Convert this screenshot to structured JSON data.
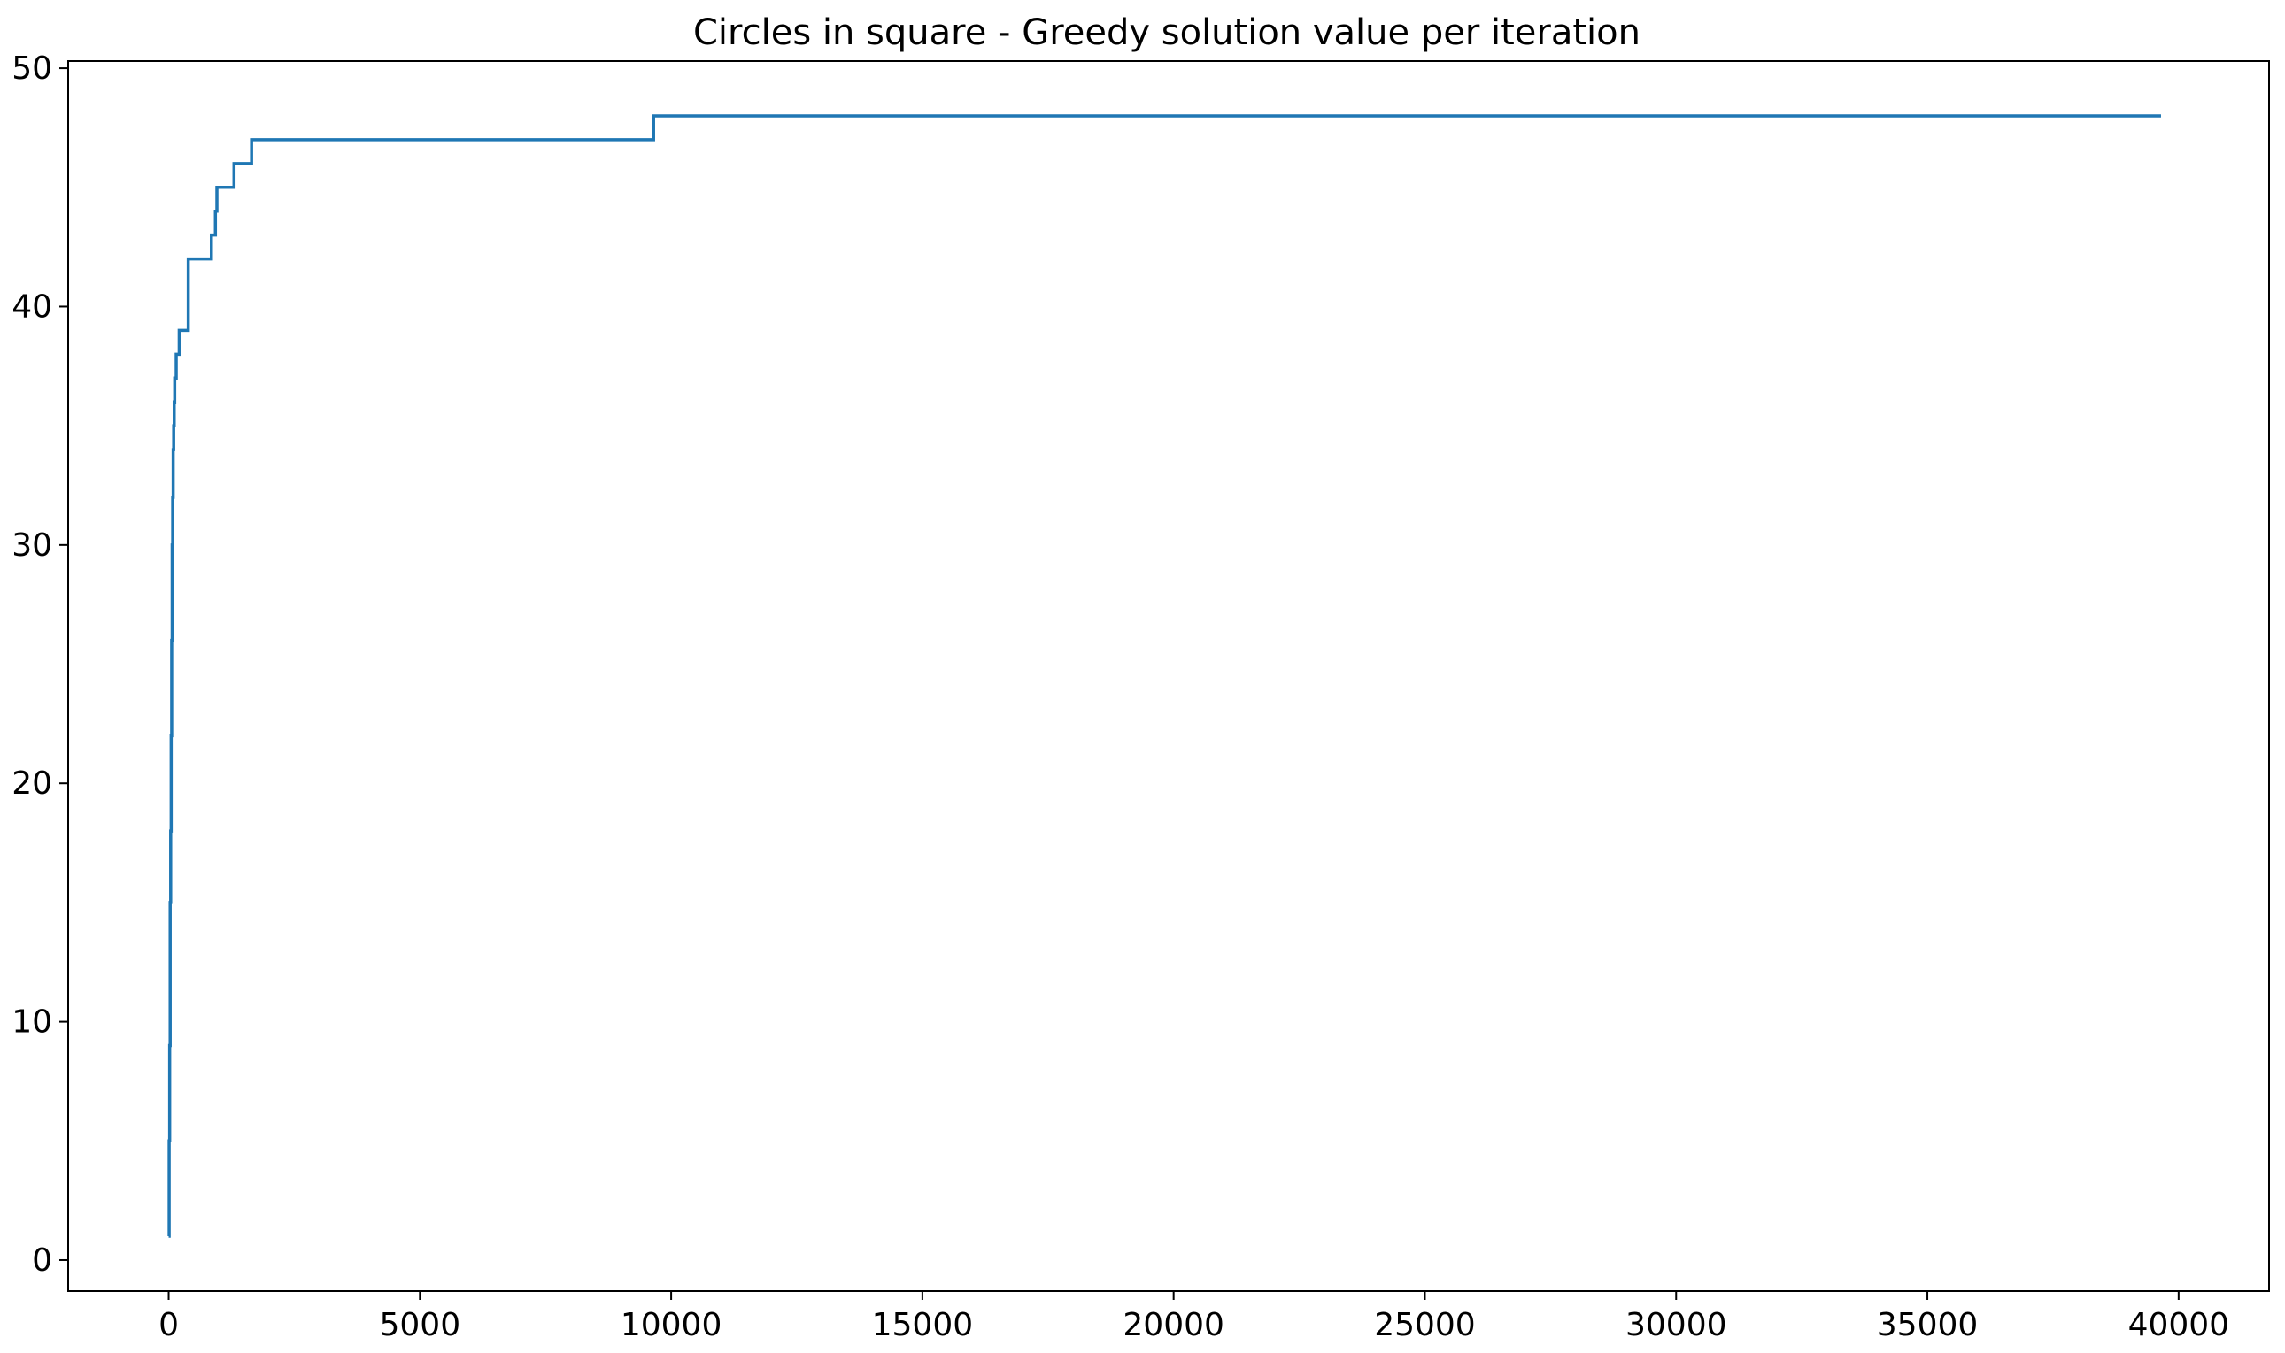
{
  "chart_data": {
    "type": "line",
    "title": "Circles in square - Greedy solution value per iteration",
    "xlabel": "",
    "ylabel": "",
    "xlim": [
      -2000,
      41800
    ],
    "ylim": [
      -1.3,
      50.3
    ],
    "xticks": [
      0,
      5000,
      10000,
      15000,
      20000,
      25000,
      30000,
      35000,
      40000
    ],
    "xtick_labels": [
      "0",
      "5000",
      "10000",
      "15000",
      "20000",
      "25000",
      "30000",
      "35000",
      "40000"
    ],
    "yticks": [
      0,
      10,
      20,
      30,
      40,
      50
    ],
    "ytick_labels": [
      "0",
      "10",
      "20",
      "30",
      "40",
      "50"
    ],
    "grid": false,
    "line_color": "#1f77b4",
    "series": [
      {
        "step": "post",
        "x": [
          0,
          10,
          20,
          30,
          40,
          50,
          60,
          70,
          80,
          90,
          100,
          110,
          120,
          130,
          150,
          170,
          190,
          210,
          240,
          270,
          330,
          390,
          850,
          900,
          930,
          960,
          1000,
          1300,
          1650,
          9650,
          39650
        ],
        "y": [
          1,
          5,
          9,
          15,
          18,
          22,
          26,
          30,
          32,
          34,
          35,
          36,
          37,
          37,
          38,
          38,
          38,
          39,
          39,
          39,
          39,
          42,
          43,
          43,
          44,
          45,
          45,
          46,
          47,
          48,
          48
        ]
      }
    ]
  }
}
